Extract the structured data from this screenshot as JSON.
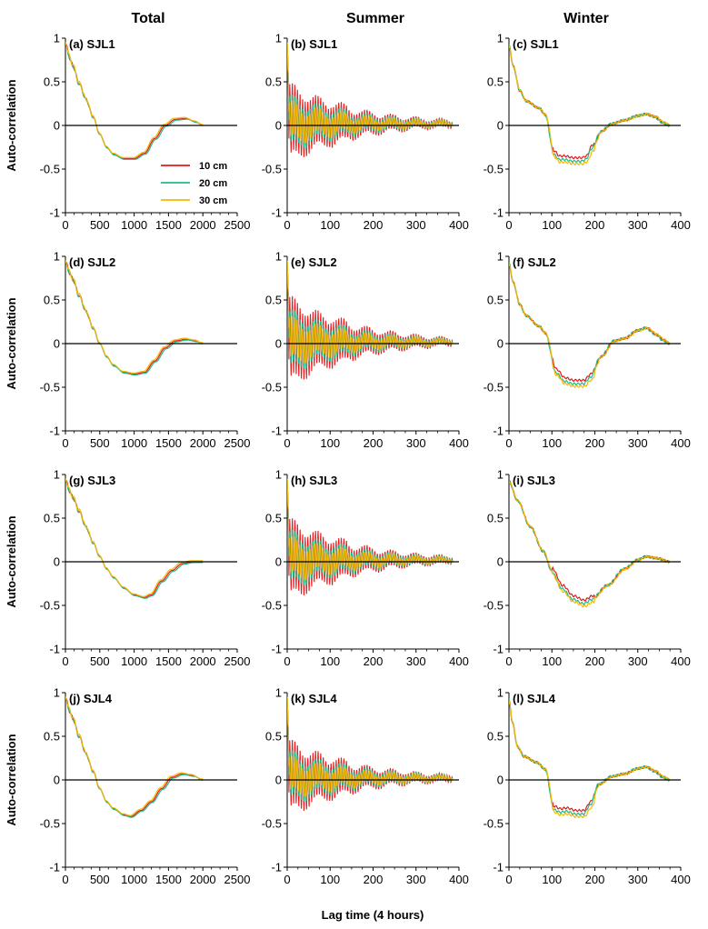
{
  "figure": {
    "columns": [
      "Total",
      "Summer",
      "Winter"
    ],
    "ylabel": "Auto-correlation",
    "xlabel": "Lag time (4 hours)"
  },
  "legend": {
    "entries": [
      {
        "label": "10 cm",
        "color": "#e41a1c"
      },
      {
        "label": "20 cm",
        "color": "#1fb98f"
      },
      {
        "label": "30 cm",
        "color": "#f5b800"
      }
    ]
  },
  "chart_data": [
    {
      "id": "a",
      "label": "(a) SJL1",
      "column": "Total",
      "type": "line",
      "profile": "total",
      "variant": 1,
      "xlim": [
        0,
        2500
      ],
      "xticks": [
        0,
        500,
        1000,
        1500,
        2000,
        2500
      ],
      "ylim": [
        -1,
        1
      ],
      "yticks": [
        -1,
        -0.5,
        0,
        0.5,
        1
      ],
      "yticklabels": [
        "-1",
        "-0.5",
        "0",
        "0.5",
        "1"
      ]
    },
    {
      "id": "b",
      "label": "(b) SJL1",
      "column": "Summer",
      "type": "line",
      "profile": "summer",
      "variant": 1,
      "xlim": [
        0,
        400
      ],
      "xticks": [
        0,
        100,
        200,
        300,
        400
      ],
      "ylim": [
        -1,
        1
      ],
      "yticks": [
        -1,
        -0.5,
        0,
        0.5,
        1
      ],
      "yticklabels": [
        "-1",
        "-0.5",
        "0",
        "0.5",
        "1"
      ]
    },
    {
      "id": "c",
      "label": "(c) SJL1",
      "column": "Winter",
      "type": "line",
      "profile": "winter",
      "variant": 1,
      "xlim": [
        0,
        400
      ],
      "xticks": [
        0,
        100,
        200,
        300,
        400
      ],
      "ylim": [
        -1,
        1
      ],
      "yticks": [
        -1,
        -0.5,
        0,
        0.5,
        1
      ],
      "yticklabels": [
        "-1",
        "-0.5",
        "0",
        "0.5",
        "1"
      ]
    },
    {
      "id": "d",
      "label": "(d) SJL2",
      "column": "Total",
      "type": "line",
      "profile": "total",
      "variant": 2,
      "xlim": [
        0,
        2500
      ],
      "xticks": [
        0,
        500,
        1000,
        1500,
        2000,
        2500
      ],
      "ylim": [
        -1,
        1
      ],
      "yticks": [
        -1,
        -0.5,
        0,
        0.5,
        1
      ],
      "yticklabels": [
        "-1",
        "-0.5",
        "0",
        "0.5",
        "1"
      ]
    },
    {
      "id": "e",
      "label": "(e) SJL2",
      "column": "Summer",
      "type": "line",
      "profile": "summer",
      "variant": 2,
      "xlim": [
        0,
        400
      ],
      "xticks": [
        0,
        100,
        200,
        300,
        400
      ],
      "ylim": [
        -1,
        1
      ],
      "yticks": [
        -1,
        -0.5,
        0,
        0.5,
        1
      ],
      "yticklabels": [
        "-1",
        "-0.5",
        "0",
        "0.5",
        "1"
      ]
    },
    {
      "id": "f",
      "label": "(f) SJL2",
      "column": "Winter",
      "type": "line",
      "profile": "winter",
      "variant": 2,
      "xlim": [
        0,
        400
      ],
      "xticks": [
        0,
        100,
        200,
        300,
        400
      ],
      "ylim": [
        -1,
        1
      ],
      "yticks": [
        -1,
        -0.5,
        0,
        0.5,
        1
      ],
      "yticklabels": [
        "-1",
        "-0.5",
        "0",
        "0.5",
        "1"
      ]
    },
    {
      "id": "g",
      "label": "(g) SJL3",
      "column": "Total",
      "type": "line",
      "profile": "total",
      "variant": 3,
      "xlim": [
        0,
        2500
      ],
      "xticks": [
        0,
        500,
        1000,
        1500,
        2000,
        2500
      ],
      "ylim": [
        -1,
        1
      ],
      "yticks": [
        -1,
        -0.5,
        0,
        0.5,
        1
      ],
      "yticklabels": [
        "-1",
        "-0.5",
        "0",
        "0.5",
        "1"
      ]
    },
    {
      "id": "h",
      "label": "(h) SJL3",
      "column": "Summer",
      "type": "line",
      "profile": "summer",
      "variant": 3,
      "xlim": [
        0,
        400
      ],
      "xticks": [
        0,
        100,
        200,
        300,
        400
      ],
      "ylim": [
        -1,
        1
      ],
      "yticks": [
        -1,
        -0.5,
        0,
        0.5,
        1
      ],
      "yticklabels": [
        "-1",
        "-0.5",
        "0",
        "0.5",
        "1"
      ]
    },
    {
      "id": "i",
      "label": "(i) SJL3",
      "column": "Winter",
      "type": "line",
      "profile": "winter",
      "variant": 3,
      "xlim": [
        0,
        400
      ],
      "xticks": [
        0,
        100,
        200,
        300,
        400
      ],
      "ylim": [
        -1,
        1
      ],
      "yticks": [
        -1,
        -0.5,
        0,
        0.5,
        1
      ],
      "yticklabels": [
        "-1",
        "-0.5",
        "0",
        "0.5",
        "1"
      ]
    },
    {
      "id": "j",
      "label": "(j) SJL4",
      "column": "Total",
      "type": "line",
      "profile": "total",
      "variant": 4,
      "xlim": [
        0,
        2500
      ],
      "xticks": [
        0,
        500,
        1000,
        1500,
        2000,
        2500
      ],
      "ylim": [
        -1,
        1
      ],
      "yticks": [
        -1,
        -0.5,
        0,
        0.5,
        1
      ],
      "yticklabels": [
        "-1",
        "-0.5",
        "0",
        "0.5",
        "1"
      ]
    },
    {
      "id": "k",
      "label": "(k) SJL4",
      "column": "Summer",
      "type": "line",
      "profile": "summer",
      "variant": 4,
      "xlim": [
        0,
        400
      ],
      "xticks": [
        0,
        100,
        200,
        300,
        400
      ],
      "ylim": [
        -1,
        1
      ],
      "yticks": [
        -1,
        -0.5,
        0,
        0.5,
        1
      ],
      "yticklabels": [
        "-1",
        "-0.5",
        "0",
        "0.5",
        "1"
      ]
    },
    {
      "id": "l",
      "label": "(l) SJL4",
      "column": "Winter",
      "type": "line",
      "profile": "winter",
      "variant": 4,
      "xlim": [
        0,
        400
      ],
      "xticks": [
        0,
        100,
        200,
        300,
        400
      ],
      "ylim": [
        -1,
        1
      ],
      "yticks": [
        -1,
        -0.5,
        0,
        0.5,
        1
      ],
      "yticklabels": [
        "-1",
        "-0.5",
        "0",
        "0.5",
        "1"
      ]
    }
  ]
}
